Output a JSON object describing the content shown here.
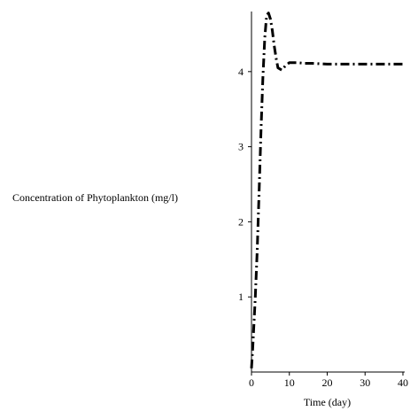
{
  "chart_data": {
    "type": "line",
    "title": "",
    "xlabel": "Time (day)",
    "ylabel": "Concentration of Phytoplankton (mg/l)",
    "xlim": [
      0,
      40
    ],
    "ylim": [
      0,
      4.8
    ],
    "x_ticks": [
      0,
      10,
      20,
      30,
      40
    ],
    "y_ticks": [
      1,
      2,
      3,
      4
    ],
    "grid": false,
    "legend": "none",
    "line_style": "dash-dot",
    "line_color": "#000000",
    "series": [
      {
        "x": [
          0,
          0.3,
          0.6,
          1.0,
          1.5,
          2.0,
          2.5,
          3.0,
          3.5,
          4.0,
          4.5,
          5.0,
          5.5,
          6.0,
          6.5,
          7.0,
          8.0,
          9.0,
          10.0,
          12.0,
          14.0,
          16.0,
          20.0,
          25.0,
          30.0,
          35.0,
          40.0
        ],
        "y": [
          0.05,
          0.3,
          0.6,
          1.0,
          1.6,
          2.4,
          3.2,
          3.9,
          4.45,
          4.75,
          4.78,
          4.7,
          4.55,
          4.35,
          4.18,
          4.05,
          4.02,
          4.08,
          4.12,
          4.12,
          4.11,
          4.11,
          4.1,
          4.1,
          4.1,
          4.1,
          4.1
        ]
      }
    ]
  }
}
